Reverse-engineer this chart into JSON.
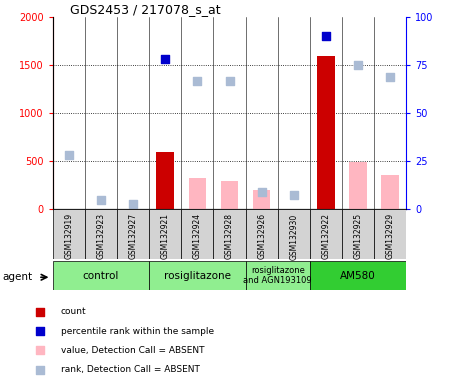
{
  "title": "GDS2453 / 217078_s_at",
  "samples": [
    "GSM132919",
    "GSM132923",
    "GSM132927",
    "GSM132921",
    "GSM132924",
    "GSM132928",
    "GSM132926",
    "GSM132930",
    "GSM132922",
    "GSM132925",
    "GSM132929"
  ],
  "count_values": [
    null,
    null,
    null,
    600,
    null,
    null,
    null,
    null,
    1600,
    null,
    null
  ],
  "value_absent": [
    null,
    null,
    null,
    null,
    330,
    290,
    null,
    null,
    null,
    490,
    360
  ],
  "rank_absent_left": [
    570,
    100,
    55,
    null,
    1340,
    1340,
    180,
    150,
    null,
    1500,
    1380
  ],
  "percentile_rank_left": [
    null,
    null,
    null,
    1570,
    null,
    null,
    null,
    null,
    1800,
    null,
    null
  ],
  "value_absent2": [
    null,
    null,
    null,
    null,
    null,
    null,
    200,
    null,
    null,
    null,
    null
  ],
  "groups": [
    {
      "label": "control",
      "start": 0,
      "end": 3
    },
    {
      "label": "rosiglitazone",
      "start": 3,
      "end": 6
    },
    {
      "label": "rosiglitazone\nand AGN193109",
      "start": 6,
      "end": 8
    },
    {
      "label": "AM580",
      "start": 8,
      "end": 11
    }
  ],
  "group_colors": [
    "#90EE90",
    "#90EE90",
    "#90EE90",
    "#32CD32"
  ],
  "ylim_left": [
    0,
    2000
  ],
  "ylim_right": [
    0,
    100
  ],
  "left_ticks": [
    0,
    500,
    1000,
    1500,
    2000
  ],
  "right_ticks": [
    0,
    25,
    50,
    75,
    100
  ],
  "count_color": "#CC0000",
  "percentile_color": "#0000CC",
  "value_absent_color": "#FFB6C1",
  "rank_absent_color": "#AABBD4",
  "bg_color": "#D3D3D3",
  "bar_width": 0.55,
  "plot_bg": "#FFFFFF"
}
